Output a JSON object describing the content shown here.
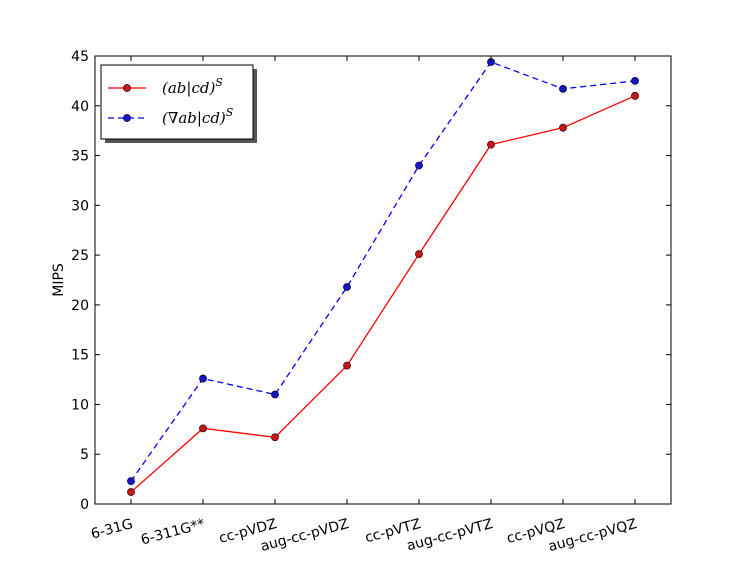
{
  "chart_data": {
    "type": "line",
    "title": "",
    "xlabel": "",
    "ylabel": "MIPS",
    "ylim": [
      0,
      45
    ],
    "yticks": [
      0,
      5,
      10,
      15,
      20,
      25,
      30,
      35,
      40,
      45
    ],
    "grid": false,
    "legend_position": "top-left",
    "categories": [
      "6-31G",
      "6-311G**",
      "cc-pVDZ",
      "aug-cc-pVDZ",
      "cc-pVTZ",
      "aug-cc-pVTZ",
      "cc-pVQZ",
      "aug-cc-pVQZ"
    ],
    "series": [
      {
        "name": "(ab|cd)^S",
        "legend_main": "(ab|cd)",
        "legend_sup": "S",
        "color": "#ff0000",
        "marker_color": "#c81414",
        "line_style": "solid",
        "values": [
          1.2,
          7.6,
          6.7,
          13.9,
          25.1,
          36.1,
          37.8,
          41.0
        ]
      },
      {
        "name": "(∇ab|cd)^S",
        "legend_main": "(∇ab|cd)",
        "legend_sup": "S",
        "color": "#0000ff",
        "marker_color": "#1414c8",
        "line_style": "dashed",
        "values": [
          2.3,
          12.6,
          11.0,
          21.8,
          34.0,
          44.4,
          41.7,
          42.5
        ]
      }
    ]
  }
}
